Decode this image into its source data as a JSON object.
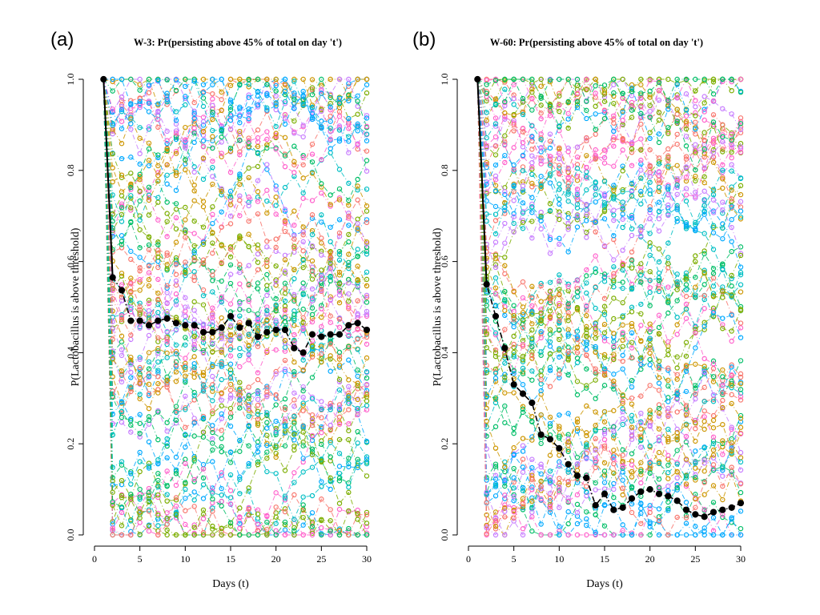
{
  "panels": [
    {
      "letter": "(a)"
    },
    {
      "letter": "(b)"
    }
  ],
  "colors": {
    "palette": [
      "#F8766D",
      "#CD9600",
      "#7CAE00",
      "#00BE67",
      "#00BFC4",
      "#00A9FF",
      "#C77CFF",
      "#FF61CC"
    ],
    "mean": "#000000"
  },
  "chart_data": [
    {
      "type": "line",
      "title": "W-3: Pr(persisting above 45% of total on day 't')",
      "xlabel": "Days (t)",
      "ylabel": "P(Lactobacillus is above threshold)",
      "xlim": [
        0,
        30
      ],
      "ylim": [
        0,
        1
      ],
      "xticks": [
        "0",
        "5",
        "10",
        "15",
        "20",
        "25",
        "30"
      ],
      "yticks": [
        "0.0",
        "0.2",
        "0.4",
        "0.6",
        "0.8",
        "1.0"
      ],
      "grid": false,
      "background_series": "many per-subject trajectories shown as coloured circles joined by dash-dot lines",
      "series": [
        {
          "x": [
            1,
            2,
            3,
            4,
            5,
            6,
            7,
            8,
            9,
            10,
            11,
            12,
            13,
            14,
            15,
            16,
            17,
            18,
            19,
            20,
            21,
            22,
            23,
            24,
            25,
            26,
            27,
            28,
            29,
            30
          ],
          "values": [
            1.0,
            0.565,
            0.537,
            0.47,
            0.47,
            0.46,
            0.47,
            0.475,
            0.465,
            0.46,
            0.46,
            0.445,
            0.445,
            0.455,
            0.48,
            0.455,
            0.465,
            0.435,
            0.445,
            0.45,
            0.45,
            0.41,
            0.4,
            0.44,
            0.435,
            0.44,
            0.44,
            0.46,
            0.465,
            0.45
          ]
        }
      ]
    },
    {
      "type": "line",
      "title": "W-60: Pr(persisting above 45% of total on day 't')",
      "xlabel": "Days (t)",
      "ylabel": "P(Lactobacillus is above threshold)",
      "xlim": [
        0,
        30
      ],
      "ylim": [
        0,
        1
      ],
      "xticks": [
        "0",
        "5",
        "10",
        "15",
        "20",
        "25",
        "30"
      ],
      "yticks": [
        "0.0",
        "0.2",
        "0.4",
        "0.6",
        "0.8",
        "1.0"
      ],
      "grid": false,
      "background_series": "many per-subject trajectories shown as coloured circles joined by dash-dot lines",
      "series": [
        {
          "x": [
            1,
            2,
            3,
            4,
            5,
            6,
            7,
            8,
            9,
            10,
            11,
            12,
            13,
            14,
            15,
            16,
            17,
            18,
            19,
            20,
            21,
            22,
            23,
            24,
            25,
            26,
            27,
            28,
            29,
            30
          ],
          "values": [
            1.0,
            0.55,
            0.48,
            0.41,
            0.33,
            0.31,
            0.29,
            0.22,
            0.21,
            0.19,
            0.155,
            0.13,
            0.125,
            0.065,
            0.09,
            0.055,
            0.06,
            0.08,
            0.095,
            0.1,
            0.09,
            0.085,
            0.075,
            0.055,
            0.045,
            0.04,
            0.05,
            0.055,
            0.06,
            0.07
          ]
        }
      ]
    }
  ]
}
